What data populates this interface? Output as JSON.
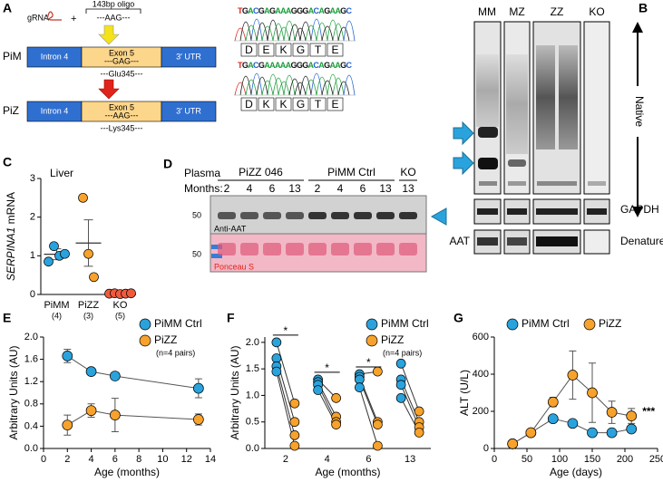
{
  "figure": {
    "panel_letters": [
      "A",
      "B",
      "C",
      "D",
      "E",
      "F",
      "G"
    ],
    "panel_a": {
      "grna": "gRNA",
      "plus": "+",
      "oligo_label": "143bp oligo",
      "oligo_seq": "---AAG---",
      "rows": [
        {
          "name": "PiM",
          "intron": "Intron 4",
          "exon": "Exon 5",
          "utr": "3′ UTR",
          "codon": "---GAG---",
          "residue": "---Glu345---",
          "sequence": "TGACGAGAAAGGGACAGAAGC",
          "amino_acids": [
            "D",
            "E",
            "K",
            "G",
            "T",
            "E"
          ]
        },
        {
          "name": "PiZ",
          "intron": "Intron 4",
          "exon": "Exon 5",
          "utr": "3′ UTR",
          "codon": "---AAG---",
          "residue": "---Lys345---",
          "sequence": "TGACGAAAAAGGGACAGAAGC",
          "amino_acids": [
            "D",
            "K",
            "K",
            "G",
            "T",
            "E"
          ]
        }
      ]
    },
    "panel_b": {
      "lanes": [
        "MM",
        "MZ",
        "ZZ",
        "KO"
      ],
      "native": "Native",
      "gapdh": "GAPDH",
      "aat": "AAT",
      "denatured": "Denatured"
    },
    "panel_d": {
      "plasma": "Plasma",
      "months_label": "Months:",
      "groups": [
        "PiZZ 046",
        "PiMM Ctrl",
        "KO"
      ],
      "months": [
        "2",
        "4",
        "6",
        "13",
        "2",
        "4",
        "6",
        "13",
        "13"
      ],
      "marker_upper": "50",
      "antibody": "Anti-AAT",
      "marker_lower": "50",
      "stain": "Ponceau S"
    }
  },
  "chart_data": [
    {
      "type": "dot",
      "title": "Liver",
      "ylabel": {
        "gene": "SERPINA1",
        "unit": "mRNA"
      },
      "categories": [
        "PiMM",
        "PiZZ",
        "KO"
      ],
      "counts": [
        "(4)",
        "(3)",
        "(5)"
      ],
      "colors": [
        "#2aa3dd",
        "#f7a22c",
        "#f05a3c"
      ],
      "values": [
        [
          0.85,
          1.25,
          1.0,
          1.05
        ],
        [
          2.5,
          1.05,
          0.45
        ],
        [
          0.02,
          0.03,
          0.01,
          0.02,
          0.03
        ]
      ],
      "means": [
        1.04,
        1.33,
        0.02
      ],
      "errors": [
        0.14,
        0.6,
        0.01
      ],
      "ylim": [
        0,
        3
      ],
      "yticks": [
        0,
        1,
        2,
        3
      ]
    },
    {
      "type": "line",
      "xlabel": "Age (months)",
      "ylabel": "Arbitrary Units (AU)",
      "annotation": "(n=4 pairs)",
      "x": [
        2,
        4,
        6,
        13
      ],
      "series": [
        {
          "name": "PiMM Ctrl",
          "color": "#2aa3dd",
          "values": [
            1.66,
            1.38,
            1.3,
            1.08
          ],
          "errors": [
            0.12,
            0.06,
            0.06,
            0.17
          ]
        },
        {
          "name": "PiZZ",
          "color": "#f7a22c",
          "values": [
            0.42,
            0.68,
            0.6,
            0.52
          ],
          "errors": [
            0.18,
            0.12,
            0.3,
            0.1
          ]
        }
      ],
      "xlim": [
        0,
        14
      ],
      "xticks": [
        0,
        2,
        4,
        6,
        8,
        10,
        12,
        14
      ],
      "ylim": [
        0,
        2
      ],
      "yticks": [
        {
          "value": 0,
          "label": "0.0"
        },
        0.4,
        0.8,
        1.2,
        1.6,
        {
          "value": 2,
          "label": "2.0"
        }
      ]
    },
    {
      "type": "paired",
      "xlabel": "Age (months)",
      "ylabel": "Arbitrary Units (AU)",
      "annotation": "(n=4 pairs)",
      "categories": [
        "2",
        "4",
        "6",
        "13"
      ],
      "significance": [
        "*",
        "*",
        "*",
        null
      ],
      "series": [
        {
          "name": "PiMM Ctrl",
          "color": "#2aa3dd",
          "values": [
            [
              2.0,
              1.7,
              1.55,
              1.45
            ],
            [
              1.3,
              1.25,
              1.2,
              1.1
            ],
            [
              1.4,
              1.35,
              1.3,
              1.15
            ],
            [
              1.6,
              1.3,
              1.2,
              0.95
            ]
          ]
        },
        {
          "name": "PiZZ",
          "color": "#f7a22c",
          "values": [
            [
              0.85,
              0.5,
              0.25,
              0.05
            ],
            [
              0.95,
              0.6,
              0.5,
              0.45
            ],
            [
              1.45,
              0.5,
              0.45,
              0.05
            ],
            [
              0.7,
              0.5,
              0.4,
              0.3
            ]
          ]
        }
      ],
      "ylim": [
        0,
        2.1
      ],
      "yticks": [
        {
          "value": 0,
          "label": "0.0"
        },
        0.5,
        {
          "value": 1,
          "label": "1.0"
        },
        1.5,
        {
          "value": 2,
          "label": "2.0"
        }
      ]
    },
    {
      "type": "line",
      "xlabel": "Age (days)",
      "ylabel": "ALT (U/L)",
      "annotation": "***",
      "x": [
        28,
        56,
        90,
        120,
        150,
        180,
        210
      ],
      "series": [
        {
          "name": "PiMM Ctrl",
          "color": "#2aa3dd",
          "values": [
            25,
            85,
            160,
            135,
            85,
            85,
            105
          ],
          "errors": [
            8,
            8,
            12,
            10,
            10,
            12,
            15
          ]
        },
        {
          "name": "PiZZ",
          "color": "#f7a22c",
          "values": [
            25,
            85,
            250,
            395,
            300,
            195,
            175
          ],
          "errors": [
            8,
            10,
            25,
            130,
            160,
            60,
            40
          ]
        }
      ],
      "xlim": [
        0,
        250
      ],
      "xticks": [
        0,
        50,
        100,
        150,
        200,
        250
      ],
      "ylim": [
        0,
        600
      ],
      "yticks": [
        0,
        200,
        400,
        600
      ]
    }
  ]
}
